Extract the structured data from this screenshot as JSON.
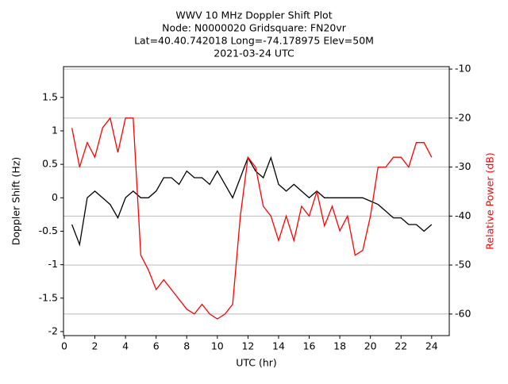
{
  "chart_data": {
    "type": "line",
    "title": [
      "WWV 10 MHz Doppler Shift Plot",
      "Node: N0000020    Gridsquare: FN20vr",
      "Lat=40.40.742018  Long=-74.178975 Elev=50M",
      "2021-03-24 UTC"
    ],
    "x_label": "UTC (hr)",
    "y_label": "Doppler Shift (Hz)",
    "y2_label": "Relative Power (dB)",
    "y2_label_color": "#ff0000",
    "x": [
      0.5,
      1,
      1.5,
      2,
      2.5,
      3,
      3.5,
      4,
      4.5,
      5,
      5.5,
      6,
      6.5,
      7,
      7.5,
      8,
      8.5,
      9,
      9.5,
      10,
      10.5,
      11,
      11.5,
      12,
      12.5,
      13,
      13.5,
      14,
      14.5,
      15,
      15.5,
      16,
      16.5,
      17,
      17.5,
      18,
      18.5,
      19,
      19.5,
      20,
      20.5,
      21,
      21.5,
      22,
      22.5,
      23,
      23.5,
      24
    ],
    "series": [
      {
        "name": "Doppler Shift",
        "color": "#000000",
        "axis": "y",
        "values": [
          -0.4,
          -0.7,
          0.0,
          0.1,
          0.0,
          -0.1,
          -0.3,
          0.0,
          0.1,
          0.0,
          0.0,
          0.1,
          0.3,
          0.3,
          0.2,
          0.4,
          0.3,
          0.3,
          0.2,
          0.4,
          0.2,
          0.0,
          0.3,
          0.6,
          0.4,
          0.3,
          0.6,
          0.2,
          0.1,
          0.2,
          0.1,
          0.0,
          0.1,
          0.0,
          0.0,
          0.0,
          0.0,
          0.0,
          0.0,
          -0.05,
          -0.1,
          -0.2,
          -0.3,
          -0.3,
          -0.4,
          -0.4,
          -0.5,
          -0.4
        ]
      },
      {
        "name": "Relative Power",
        "color": "#ff0000",
        "axis": "y2",
        "values": [
          -22,
          -30,
          -25,
          -28,
          -22,
          -20,
          -27,
          -20,
          -20,
          -48,
          -51,
          -55,
          -53,
          -55,
          -57,
          -59,
          -60,
          -58,
          -60,
          -61,
          -60,
          -58,
          -40,
          -28,
          -30,
          -38,
          -40,
          -45,
          -40,
          -45,
          -38,
          -40,
          -35,
          -42,
          -38,
          -43,
          -40,
          -48,
          -47,
          -40,
          -30,
          -30,
          -28,
          -28,
          -30,
          -25,
          -25,
          -28
        ]
      }
    ],
    "xlim": [
      -0.05,
      25.15
    ],
    "xticks": [
      0,
      2,
      4,
      6,
      8,
      10,
      12,
      14,
      16,
      18,
      20,
      22,
      24
    ],
    "ylim": [
      -2.06,
      1.96
    ],
    "yticks": [
      -2.0,
      -1.5,
      -1.0,
      -0.5,
      0.0,
      0.5,
      1.0,
      1.5
    ],
    "y2lim": [
      -64.4,
      -9.5
    ],
    "y2ticks": [
      -60,
      -50,
      -40,
      -30,
      -20,
      -10
    ],
    "grid": "y2"
  }
}
